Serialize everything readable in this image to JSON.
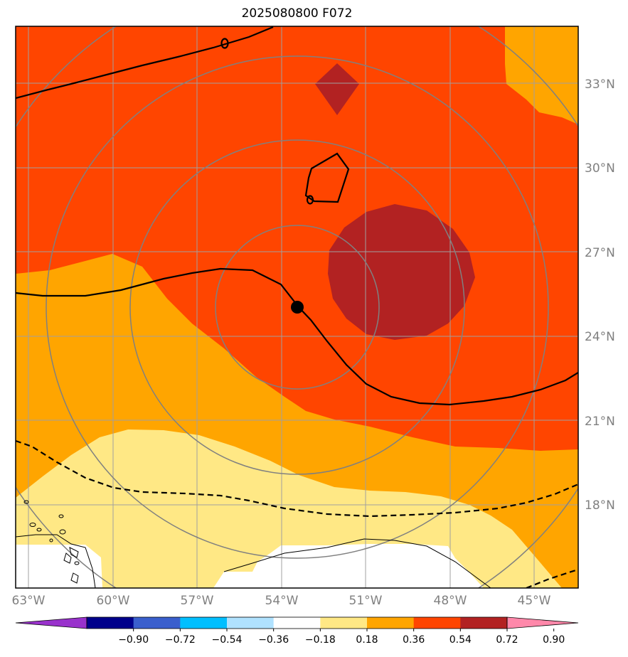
{
  "title": "2025080800 F072",
  "lat_labels": [
    "33°N",
    "30°N",
    "27°N",
    "24°N",
    "21°N",
    "18°N"
  ],
  "lon_labels": [
    "63°W",
    "60°W",
    "57°W",
    "54°W",
    "51°W",
    "48°W",
    "45°W"
  ],
  "colorbar": {
    "ticks": [
      "−0.90",
      "−0.72",
      "−0.54",
      "−0.36",
      "−0.18",
      "0.18",
      "0.36",
      "0.54",
      "0.72",
      "0.90"
    ],
    "colors": [
      "#9932cc",
      "#00008b",
      "#3a5fcd",
      "#00bfff",
      "#b0e2ff",
      "#ffffff",
      "#ffe885",
      "#ffa500",
      "#ff4500",
      "#b22222",
      "#ff88aa"
    ]
  },
  "colors": {
    "orange_red": "#ff4500",
    "orange": "#ffa500",
    "yellow": "#ffe885",
    "dark_red": "#b22222",
    "grid": "#a0a0a0",
    "range_rings": "#808080"
  },
  "center_marker": {
    "lat": 25.0,
    "lon": -53.4
  }
}
